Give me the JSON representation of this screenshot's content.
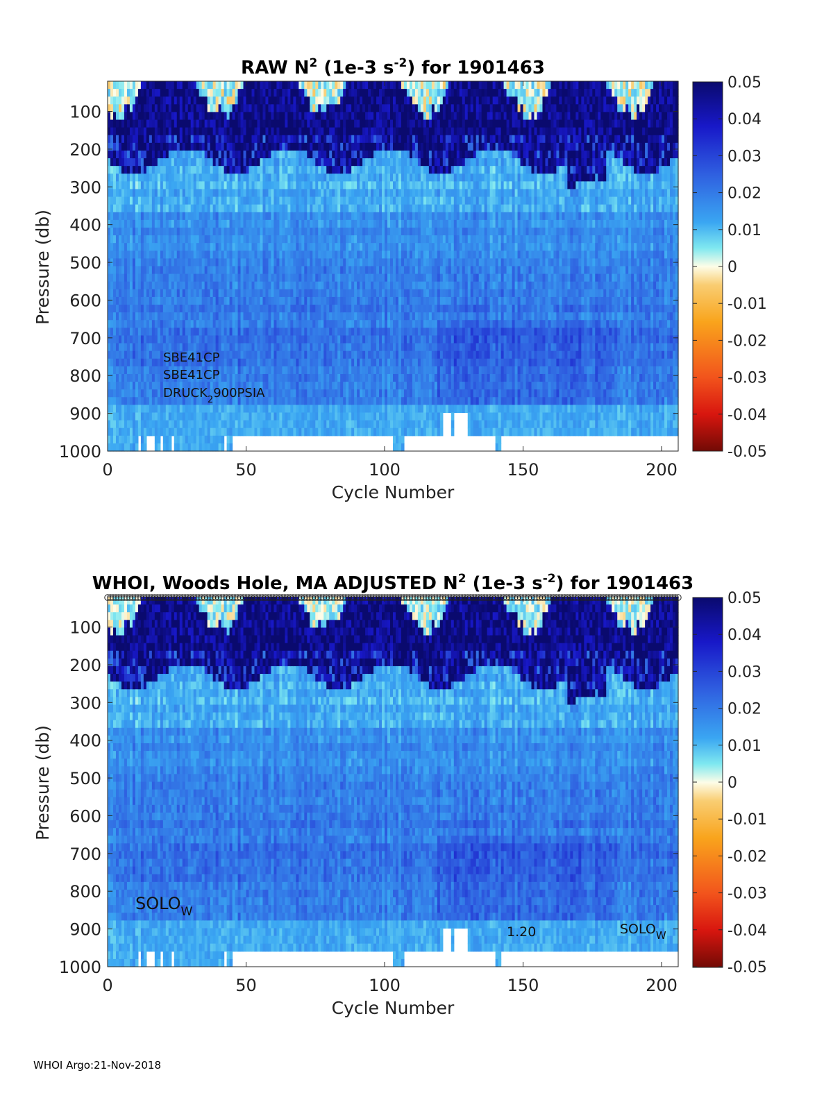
{
  "footer": "WHOI Argo:21-Nov-2018",
  "chart_data": [
    {
      "type": "heatmap",
      "title_parts": [
        "RAW N",
        "2",
        " (1e-3 s",
        "-2",
        ") for 1901463"
      ],
      "xlabel": "Cycle Number",
      "ylabel": "Pressure (db)",
      "xlim": [
        0,
        206
      ],
      "ylim": [
        1000,
        20
      ],
      "xticks": [
        0,
        50,
        100,
        150,
        200
      ],
      "yticks": [
        100,
        200,
        300,
        400,
        500,
        600,
        700,
        800,
        900,
        1000
      ],
      "colorbar": {
        "ticks": [
          "0.05",
          "0.04",
          "0.03",
          "0.02",
          "0.01",
          "0",
          "-0.01",
          "-0.02",
          "-0.03",
          "-0.04",
          "-0.05"
        ],
        "range": [
          -0.05,
          0.05
        ],
        "colormap": "blue-cyan-white-yellow-red"
      },
      "sensor_labels": [
        "SBE41CP",
        "SBE41CP",
        "DRUCK",
        "2",
        "900PSIA"
      ],
      "missing_deep_cycles": [
        [
          11,
          12
        ],
        [
          14,
          17
        ],
        [
          19,
          20
        ],
        [
          23,
          24
        ],
        [
          42,
          43
        ],
        [
          45,
          103
        ],
        [
          107,
          140
        ],
        [
          142,
          206
        ]
      ],
      "missing_900_cycles": [
        [
          121,
          124
        ],
        [
          125,
          130
        ]
      ]
    },
    {
      "type": "heatmap",
      "title_parts": [
        "WHOI, Woods Hole, MA  ADJUSTED N",
        "2",
        " (1e-3 s",
        "-2",
        ") for 1901463"
      ],
      "xlabel": "Cycle Number",
      "ylabel": "Pressure (db)",
      "xlim": [
        0,
        206
      ],
      "ylim": [
        1000,
        20
      ],
      "xticks": [
        0,
        50,
        100,
        150,
        200
      ],
      "yticks": [
        100,
        200,
        300,
        400,
        500,
        600,
        700,
        800,
        900,
        1000
      ],
      "colorbar": {
        "ticks": [
          "0.05",
          "0.04",
          "0.03",
          "0.02",
          "0.01",
          "0",
          "-0.01",
          "-0.02",
          "-0.03",
          "-0.04",
          "-0.05"
        ],
        "range": [
          -0.05,
          0.05
        ],
        "colormap": "blue-cyan-white-yellow-red"
      },
      "annotations": [
        {
          "main": "SOLO",
          "sub": "W",
          "cycle": 10,
          "pressure": 840
        },
        {
          "main": "1.20",
          "sub": "",
          "cycle": 144,
          "pressure": 920
        },
        {
          "main": "SOLO",
          "sub": "W",
          "cycle": 185,
          "pressure": 920
        }
      ],
      "marker_row": "circles along top edge, one per cycle",
      "missing_deep_cycles": [
        [
          11,
          12
        ],
        [
          14,
          17
        ],
        [
          19,
          20
        ],
        [
          23,
          24
        ],
        [
          42,
          43
        ],
        [
          45,
          103
        ],
        [
          107,
          140
        ],
        [
          142,
          206
        ]
      ],
      "missing_900_cycles": [
        [
          121,
          124
        ],
        [
          125,
          130
        ]
      ]
    }
  ]
}
